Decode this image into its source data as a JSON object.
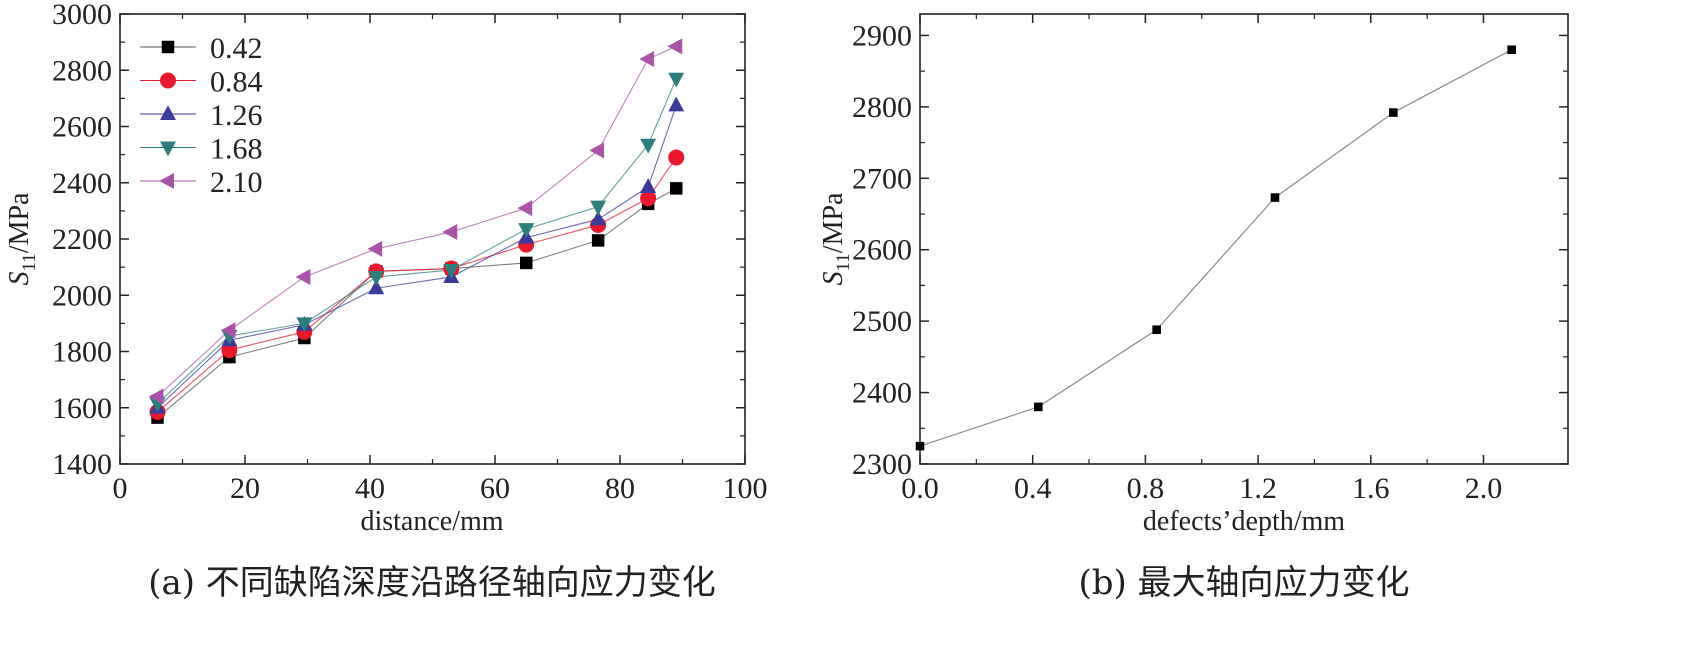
{
  "chart_data": [
    {
      "type": "line",
      "caption": "(a)  不同缺陷深度沿路径轴向应力变化",
      "xlabel": "distance/mm",
      "ylabel_symbol": "S",
      "ylabel_subscript": "11",
      "ylabel_unit": "/MPa",
      "xlim": [
        0,
        100
      ],
      "ylim": [
        1400,
        3000
      ],
      "xticks": [
        0,
        20,
        40,
        60,
        80,
        100
      ],
      "yticks": [
        1400,
        1600,
        1800,
        2000,
        2200,
        2400,
        2600,
        2800,
        3000
      ],
      "grid": false,
      "legend_position": "top-left",
      "series": [
        {
          "name": "0.42",
          "marker": "square",
          "color": "#000000",
          "line_color": "#555555",
          "x": [
            6,
            17.5,
            29.5,
            41,
            53,
            65,
            76.5,
            84.5,
            89
          ],
          "y": [
            1565,
            1780,
            1848,
            2085,
            2095,
            2115,
            2195,
            2325,
            2380
          ]
        },
        {
          "name": "0.84",
          "marker": "circle",
          "color": "#e8192c",
          "line_color": "#e8192c",
          "x": [
            6,
            17.5,
            29.5,
            41,
            53,
            65,
            76.5,
            84.5,
            89
          ],
          "y": [
            1585,
            1805,
            1870,
            2085,
            2095,
            2180,
            2250,
            2345,
            2490
          ]
        },
        {
          "name": "1.26",
          "marker": "triangle-up",
          "color": "#3a3a98",
          "line_color": "#3a3a98",
          "x": [
            6,
            17.5,
            29.5,
            41,
            53,
            65,
            76.5,
            84.5,
            89
          ],
          "y": [
            1600,
            1840,
            1895,
            2025,
            2065,
            2205,
            2270,
            2385,
            2675
          ]
        },
        {
          "name": "1.68",
          "marker": "triangle-down",
          "color": "#2f7d7d",
          "line_color": "#2f7d7d",
          "x": [
            6,
            17.5,
            29.5,
            41,
            53,
            65,
            76.5,
            84.5,
            89
          ],
          "y": [
            1615,
            1855,
            1900,
            2065,
            2090,
            2235,
            2315,
            2535,
            2770
          ]
        },
        {
          "name": "2.10",
          "marker": "triangle-left",
          "color": "#a855a8",
          "line_color": "#a855a8",
          "x": [
            6,
            17.5,
            29.5,
            41,
            53,
            65,
            76.5,
            84.5,
            89
          ],
          "y": [
            1640,
            1875,
            2065,
            2165,
            2225,
            2310,
            2515,
            2840,
            2885
          ]
        }
      ]
    },
    {
      "type": "line",
      "caption": "(b)  最大轴向应力变化",
      "xlabel": "defects’depth/mm",
      "ylabel_symbol": "S",
      "ylabel_subscript": "11",
      "ylabel_unit": "/MPa",
      "xlim": [
        0,
        2.3
      ],
      "ylim": [
        2300,
        2930
      ],
      "xticks": [
        "0.0",
        "0.4",
        "0.8",
        "1.2",
        "1.6",
        "2.0"
      ],
      "yticks": [
        2300,
        2400,
        2500,
        2600,
        2700,
        2800,
        2900
      ],
      "grid": false,
      "series": [
        {
          "marker": "square",
          "color": "#000000",
          "line_color": "#555555",
          "x": [
            0,
            0.42,
            0.84,
            1.26,
            1.68,
            2.1
          ],
          "y": [
            2325,
            2380,
            2488,
            2673,
            2792,
            2880
          ]
        }
      ]
    }
  ]
}
